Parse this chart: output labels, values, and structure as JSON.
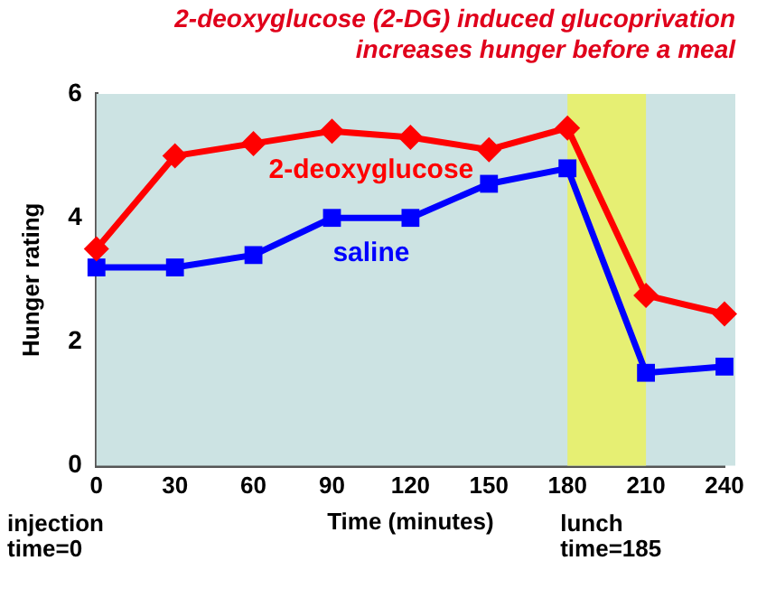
{
  "chart_data": {
    "type": "line",
    "title": "2-deoxyglucose (2-DG) induced glucoprivation increases hunger before a meal",
    "xlabel": "Time (minutes)",
    "ylabel": "Hunger rating",
    "x": [
      0,
      30,
      60,
      90,
      120,
      150,
      180,
      210,
      240
    ],
    "series": [
      {
        "name": "2-deoxyglucose",
        "color": "#ff0000",
        "marker": "diamond",
        "values": [
          3.5,
          5.0,
          5.2,
          5.4,
          5.3,
          5.1,
          5.45,
          2.75,
          2.45
        ]
      },
      {
        "name": "saline",
        "color": "#0000ff",
        "marker": "square",
        "values": [
          3.2,
          3.2,
          3.4,
          4.0,
          4.0,
          4.55,
          4.8,
          1.5,
          1.6
        ]
      }
    ],
    "xlim": [
      0,
      240
    ],
    "xticks": [
      0,
      30,
      60,
      90,
      120,
      150,
      180,
      210,
      240
    ],
    "ylim": [
      0,
      6
    ],
    "yticks": [
      0,
      2,
      4,
      6
    ],
    "bands": [
      {
        "axis": "x",
        "from": 180,
        "to": 210,
        "color": "#e6ef73"
      }
    ],
    "annotations": [
      "injection time=0",
      "lunch time=185"
    ],
    "grid": false,
    "legend": false
  }
}
